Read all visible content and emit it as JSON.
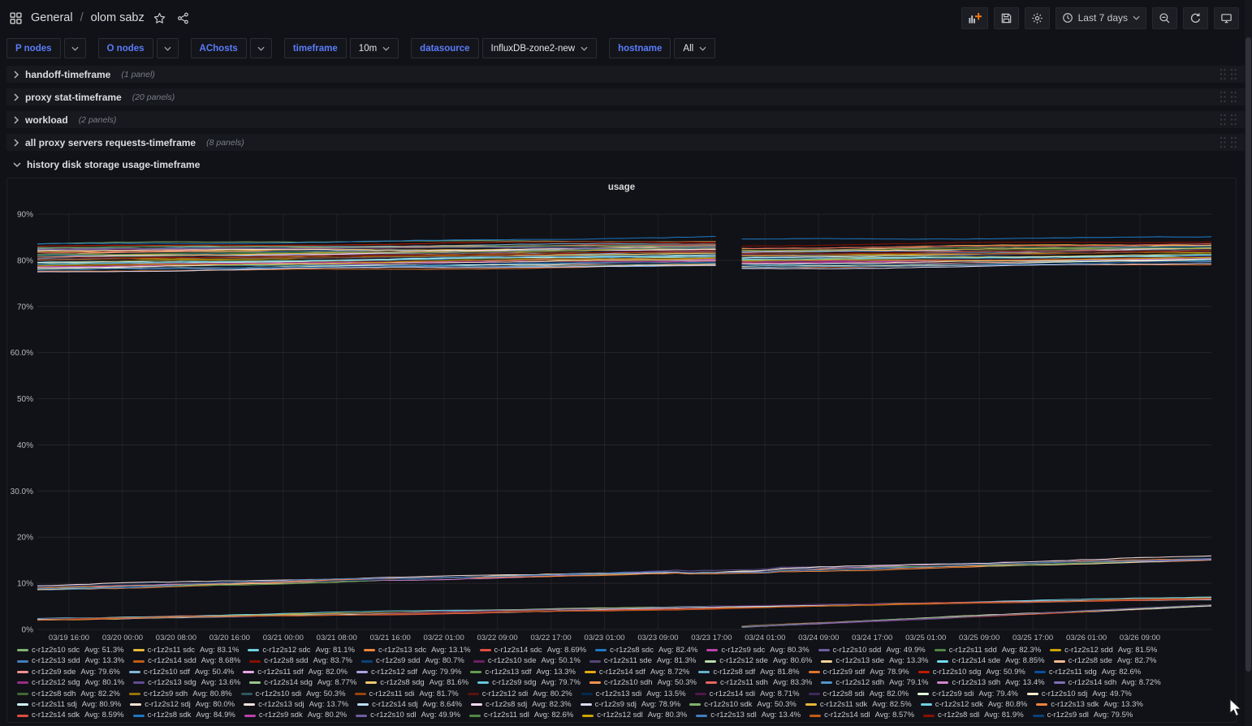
{
  "colors": {
    "background": "#111217",
    "row_background": "#17191f",
    "accent_blue": "#5a7cf8",
    "text": "#ccccdc",
    "text_dim": "#7b7e87",
    "grid": "#2c2e33",
    "add_plus_orange": "#ff780a"
  },
  "topnav": {
    "breadcrumb": {
      "section": "General",
      "separator": "/",
      "title": "olom sabz"
    },
    "icons": [
      "apps-grid-icon",
      "star-icon",
      "share-icon"
    ],
    "action_icons": [
      "add-panel-icon",
      "save-icon",
      "gear-icon",
      "clock-icon",
      "zoom-out-icon",
      "refresh-icon",
      "kiosk-icon"
    ],
    "time_range": "Last 7 days"
  },
  "filters": [
    {
      "label": "P nodes",
      "type": "multi"
    },
    {
      "label": "O nodes",
      "type": "multi"
    },
    {
      "label": "AChosts",
      "type": "multi"
    },
    {
      "label": "timeframe",
      "type": "value",
      "value": "10m"
    },
    {
      "label": "datasource",
      "type": "value",
      "value": "InfluxDB-zone2-new"
    },
    {
      "label": "hostname",
      "type": "value",
      "value": "All"
    }
  ],
  "rows": [
    {
      "title": "handoff-timeframe",
      "count": "(1 panel)",
      "collapsed": true
    },
    {
      "title": "proxy stat-timeframe",
      "count": "(20 panels)",
      "collapsed": true
    },
    {
      "title": "workload",
      "count": "(2 panels)",
      "collapsed": true
    },
    {
      "title": "all proxy servers requests-timeframe",
      "count": "(8 panels)",
      "collapsed": true
    },
    {
      "title": "history disk storage usage-timeframe",
      "count": "",
      "collapsed": false
    }
  ],
  "panel": {
    "title": "usage"
  },
  "chart_data": {
    "type": "line",
    "title": "usage",
    "ylim": [
      0,
      90
    ],
    "y_ticks": [
      "90%",
      "80%",
      "70%",
      "60.0%",
      "50%",
      "40%",
      "30.0%",
      "20%",
      "10%",
      "0%"
    ],
    "x_ticks": [
      "03/19 16:00",
      "03/20 00:00",
      "03/20 08:00",
      "03/20 16:00",
      "03/21 00:00",
      "03/21 08:00",
      "03/21 16:00",
      "03/22 01:00",
      "03/22 09:00",
      "03/22 17:00",
      "03/23 01:00",
      "03/23 09:00",
      "03/23 17:00",
      "03/24 01:00",
      "03/24 09:00",
      "03/24 17:00",
      "03/25 01:00",
      "03/25 09:00",
      "03/25 17:00",
      "03/26 01:00",
      "03/26 09:00"
    ],
    "legend_position": "bottom",
    "legend_avg_label": "Avg:",
    "grid": true,
    "bands_description": {
      "high_band": "~55 series clustered between 77% and 85%, near-flat, rising ~2% across the week, small level shift down at 03/23 ~15:00; topmost blue line (c-r1z2s8 sdk) reaches ~87% at right edge",
      "mid_band": "sd13-type series rise from ~9% at 03/19 to ~15.5% at 03/26",
      "low_band": "sd14-type series rise from ~2% to ~7% across the week",
      "s10_jump": "c-r1z2s10 series run ~83% until 03/23 ~15:00, then drop to ~0% and climb to ~5.5% by 03/26"
    },
    "series": [
      {
        "name": "c-r1z2s10 sdc",
        "avg": "51.3%",
        "color": "#7EB26D"
      },
      {
        "name": "c-r1z2s11 sdc",
        "avg": "83.1%",
        "color": "#EAB839"
      },
      {
        "name": "c-r1z2s12 sdc",
        "avg": "81.1%",
        "color": "#6ED0E0"
      },
      {
        "name": "c-r1z2s13 sdc",
        "avg": "13.1%",
        "color": "#EF843C"
      },
      {
        "name": "c-r1z2s14 sdc",
        "avg": "8.69%",
        "color": "#E24D42"
      },
      {
        "name": "c-r1z2s8 sdc",
        "avg": "82.4%",
        "color": "#1F78C1"
      },
      {
        "name": "c-r1z2s9 sdc",
        "avg": "80.3%",
        "color": "#BA43A9"
      },
      {
        "name": "c-r1z2s10 sdd",
        "avg": "49.9%",
        "color": "#705DA0"
      },
      {
        "name": "c-r1z2s11 sdd",
        "avg": "82.3%",
        "color": "#508642"
      },
      {
        "name": "c-r1z2s12 sdd",
        "avg": "81.5%",
        "color": "#CCA300"
      },
      {
        "name": "c-r1z2s13 sdd",
        "avg": "13.3%",
        "color": "#447EBC"
      },
      {
        "name": "c-r1z2s14 sdd",
        "avg": "8.68%",
        "color": "#C15C17"
      },
      {
        "name": "c-r1z2s8 sdd",
        "avg": "83.7%",
        "color": "#890F02"
      },
      {
        "name": "c-r1z2s9 sdd",
        "avg": "80.7%",
        "color": "#0A437C"
      },
      {
        "name": "c-r1z2s10 sde",
        "avg": "50.1%",
        "color": "#6D1F62"
      },
      {
        "name": "c-r1z2s11 sde",
        "avg": "81.3%",
        "color": "#584477"
      },
      {
        "name": "c-r1z2s12 sde",
        "avg": "80.6%",
        "color": "#B7DBAB"
      },
      {
        "name": "c-r1z2s13 sde",
        "avg": "13.3%",
        "color": "#F4D598"
      },
      {
        "name": "c-r1z2s14 sde",
        "avg": "8.85%",
        "color": "#70DBED"
      },
      {
        "name": "c-r1z2s8 sde",
        "avg": "82.7%",
        "color": "#F9BA8F"
      },
      {
        "name": "c-r1z2s9 sde",
        "avg": "79.6%",
        "color": "#F29191"
      },
      {
        "name": "c-r1z2s10 sdf",
        "avg": "50.4%",
        "color": "#82B5D8"
      },
      {
        "name": "c-r1z2s11 sdf",
        "avg": "82.0%",
        "color": "#E5A8E2"
      },
      {
        "name": "c-r1z2s12 sdf",
        "avg": "79.9%",
        "color": "#AEA2E0"
      },
      {
        "name": "c-r1z2s13 sdf",
        "avg": "13.3%",
        "color": "#629E51"
      },
      {
        "name": "c-r1z2s14 sdf",
        "avg": "8.72%",
        "color": "#E5AC0E"
      },
      {
        "name": "c-r1z2s8 sdf",
        "avg": "81.8%",
        "color": "#64B0C8"
      },
      {
        "name": "c-r1z2s9 sdf",
        "avg": "78.9%",
        "color": "#E0752D"
      },
      {
        "name": "c-r1z2s10 sdg",
        "avg": "50.9%",
        "color": "#BF1B00"
      },
      {
        "name": "c-r1z2s11 sdg",
        "avg": "82.6%",
        "color": "#0A50A1"
      },
      {
        "name": "c-r1z2s12 sdg",
        "avg": "80.1%",
        "color": "#962D82"
      },
      {
        "name": "c-r1z2s13 sdg",
        "avg": "13.6%",
        "color": "#614D93"
      },
      {
        "name": "c-r1z2s14 sdg",
        "avg": "8.77%",
        "color": "#9AC48A"
      },
      {
        "name": "c-r1z2s8 sdg",
        "avg": "81.6%",
        "color": "#F2C96D"
      },
      {
        "name": "c-r1z2s9 sdg",
        "avg": "79.7%",
        "color": "#65C5DB"
      },
      {
        "name": "c-r1z2s10 sdh",
        "avg": "50.3%",
        "color": "#F9934E"
      },
      {
        "name": "c-r1z2s11 sdh",
        "avg": "83.3%",
        "color": "#EA6460"
      },
      {
        "name": "c-r1z2s12 sdh",
        "avg": "79.1%",
        "color": "#5195CE"
      },
      {
        "name": "c-r1z2s13 sdh",
        "avg": "13.4%",
        "color": "#D683CE"
      },
      {
        "name": "c-r1z2s14 sdh",
        "avg": "8.72%",
        "color": "#806EB7"
      },
      {
        "name": "c-r1z2s8 sdh",
        "avg": "82.2%",
        "color": "#3F6833"
      },
      {
        "name": "c-r1z2s9 sdh",
        "avg": "80.8%",
        "color": "#967302"
      },
      {
        "name": "c-r1z2s10 sdi",
        "avg": "50.3%",
        "color": "#2F575E"
      },
      {
        "name": "c-r1z2s11 sdi",
        "avg": "81.7%",
        "color": "#99440A"
      },
      {
        "name": "c-r1z2s12 sdi",
        "avg": "80.2%",
        "color": "#58140C"
      },
      {
        "name": "c-r1z2s13 sdi",
        "avg": "13.5%",
        "color": "#052B51"
      },
      {
        "name": "c-r1z2s14 sdi",
        "avg": "8.71%",
        "color": "#511749"
      },
      {
        "name": "c-r1z2s8 sdi",
        "avg": "82.0%",
        "color": "#3F2B5B"
      },
      {
        "name": "c-r1z2s9 sdi",
        "avg": "79.4%",
        "color": "#E0F9D7"
      },
      {
        "name": "c-r1z2s10 sdj",
        "avg": "49.7%",
        "color": "#FCEACA"
      },
      {
        "name": "c-r1z2s11 sdj",
        "avg": "80.9%",
        "color": "#CFFAFF"
      },
      {
        "name": "c-r1z2s12 sdj",
        "avg": "80.0%",
        "color": "#F9E2D2"
      },
      {
        "name": "c-r1z2s13 sdj",
        "avg": "13.7%",
        "color": "#FCE2DE"
      },
      {
        "name": "c-r1z2s14 sdj",
        "avg": "8.64%",
        "color": "#BADFF4"
      },
      {
        "name": "c-r1z2s8 sdj",
        "avg": "82.3%",
        "color": "#F9D9F9"
      },
      {
        "name": "c-r1z2s9 sdj",
        "avg": "78.9%",
        "color": "#DEDAF7"
      },
      {
        "name": "c-r1z2s10 sdk",
        "avg": "50.3%",
        "color": "#7EB26D"
      },
      {
        "name": "c-r1z2s11 sdk",
        "avg": "82.5%",
        "color": "#EAB839"
      },
      {
        "name": "c-r1z2s12 sdk",
        "avg": "80.8%",
        "color": "#6ED0E0"
      },
      {
        "name": "c-r1z2s13 sdk",
        "avg": "13.3%",
        "color": "#EF843C"
      },
      {
        "name": "c-r1z2s14 sdk",
        "avg": "8.59%",
        "color": "#E24D42"
      },
      {
        "name": "c-r1z2s8 sdk",
        "avg": "84.9%",
        "color": "#1F78C1"
      },
      {
        "name": "c-r1z2s9 sdk",
        "avg": "80.2%",
        "color": "#BA43A9"
      },
      {
        "name": "c-r1z2s10 sdl",
        "avg": "49.9%",
        "color": "#705DA0"
      },
      {
        "name": "c-r1z2s11 sdl",
        "avg": "82.6%",
        "color": "#508642"
      },
      {
        "name": "c-r1z2s12 sdl",
        "avg": "80.3%",
        "color": "#CCA300"
      },
      {
        "name": "c-r1z2s13 sdl",
        "avg": "13.4%",
        "color": "#447EBC"
      },
      {
        "name": "c-r1z2s14 sdl",
        "avg": "8.57%",
        "color": "#C15C17"
      },
      {
        "name": "c-r1z2s8 sdl",
        "avg": "81.9%",
        "color": "#890F02"
      },
      {
        "name": "c-r1z2s9 sdl",
        "avg": "79.5%",
        "color": "#0A437C"
      }
    ]
  }
}
